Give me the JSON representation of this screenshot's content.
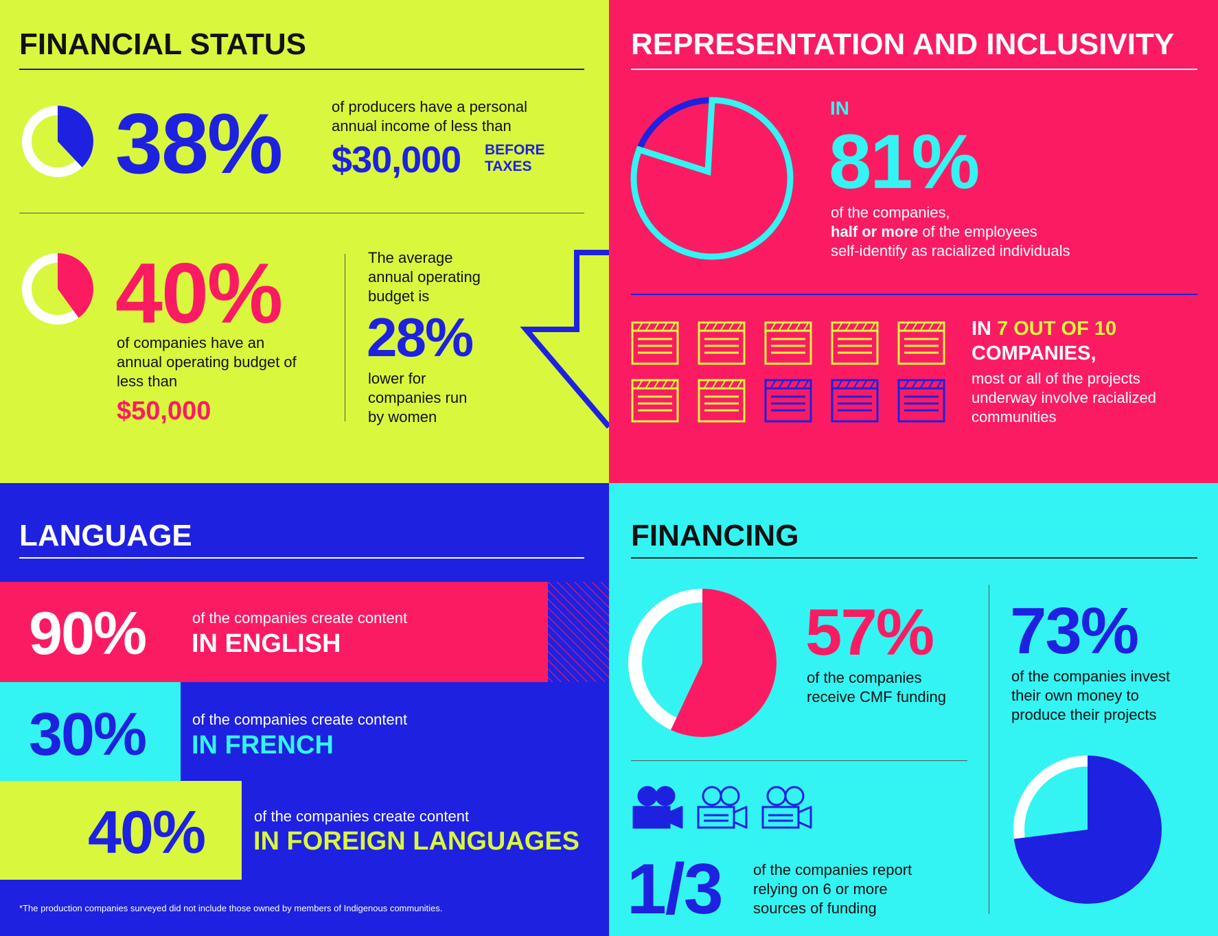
{
  "colors": {
    "lime": "#d9f73d",
    "pink": "#fb1b63",
    "blue": "#1e21e0",
    "cyan": "#33f4f2",
    "dark": "#111111",
    "white": "#ffffff"
  },
  "financial_status": {
    "title": "FINANCIAL STATUS",
    "stat1": {
      "value": "38%",
      "fraction": 0.38,
      "text": "of producers have a personal annual income of less than",
      "amount": "$30,000",
      "amount_note_1": "BEFORE",
      "amount_note_2": "TAXES"
    },
    "stat2": {
      "value": "40%",
      "fraction": 0.4,
      "text": "of companies have an annual operating budget of less than",
      "amount": "$50,000"
    },
    "stat3": {
      "intro": "The average annual operating budget is",
      "value": "28%",
      "text": "lower for companies run by women"
    }
  },
  "representation": {
    "title": "REPRESENTATION AND INCLUSIVITY",
    "stat1": {
      "prefix": "IN",
      "value": "81%",
      "fraction": 0.81,
      "line1": "of the companies,",
      "line2_bold": "half or more",
      "line2_rest": " of the employees",
      "line3": "self-identify as racialized individuals"
    },
    "stat2": {
      "prefix": "IN ",
      "highlight": "7 OUT OF 10",
      "line2": "COMPANIES,",
      "text": "most or all of the projects underway involve racialized communities",
      "filled_count": 7,
      "total_count": 10,
      "icon": "clapperboard-icon"
    }
  },
  "language": {
    "title": "LANGUAGE",
    "rows": [
      {
        "value": "90%",
        "text": "of the companies create content",
        "label": "IN ENGLISH"
      },
      {
        "value": "30%",
        "text": "of the companies create content",
        "label": "IN FRENCH"
      },
      {
        "value": "40%",
        "text": "of the companies create content",
        "label": "IN FOREIGN LANGUAGES"
      }
    ],
    "footnote": "*The production companies surveyed did not include those owned by members of Indigenous communities."
  },
  "financing": {
    "title": "FINANCING",
    "stat1": {
      "value": "57%",
      "fraction": 0.57,
      "text": "of the companies receive CMF funding"
    },
    "stat2": {
      "value": "73%",
      "fraction": 0.73,
      "text": "of the companies invest their own money to produce their projects"
    },
    "stat3": {
      "value": "1/3",
      "text": "of the companies report relying on 6 or more sources of funding",
      "icon": "camera-icon",
      "filled_count": 1,
      "total_count": 3
    }
  }
}
